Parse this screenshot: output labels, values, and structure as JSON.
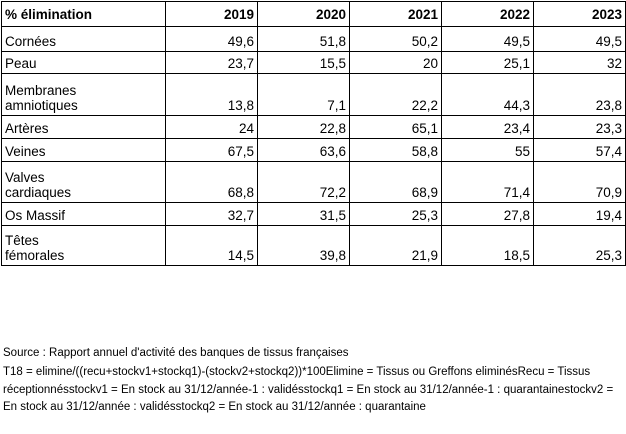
{
  "header": {
    "label": "% élimination",
    "years": [
      "2019",
      "2020",
      "2021",
      "2022",
      "2023"
    ]
  },
  "rows": [
    {
      "label": "Cornées",
      "values": [
        "49,6",
        "51,8",
        "50,2",
        "49,5",
        "49,5"
      ]
    },
    {
      "label": "Peau",
      "values": [
        "23,7",
        "15,5",
        "20",
        "25,1",
        "32"
      ]
    },
    {
      "label": "Membranes\namniotiques",
      "values": [
        "13,8",
        "7,1",
        "22,2",
        "44,3",
        "23,8"
      ]
    },
    {
      "label": "Artères",
      "values": [
        "24",
        "22,8",
        "65,1",
        "23,4",
        "23,3"
      ]
    },
    {
      "label": "Veines",
      "values": [
        "67,5",
        "63,6",
        "58,8",
        "55",
        "57,4"
      ]
    },
    {
      "label": "Valves\ncardiaques",
      "values": [
        "68,8",
        "72,2",
        "68,9",
        "71,4",
        "70,9"
      ]
    },
    {
      "label": "Os Massif",
      "values": [
        "32,7",
        "31,5",
        "25,3",
        "27,8",
        "19,4"
      ]
    },
    {
      "label": "Têtes\nfémorales",
      "values": [
        "14,5",
        "39,8",
        "21,9",
        "18,5",
        "25,3"
      ]
    }
  ],
  "footer": {
    "source": "Source : Rapport annuel d'activité des banques de tissus françaises",
    "note": "T18 = elimine/((recu+stockv1+stockq1)-(stockv2+stockq2))*100Elimine = Tissus ou Greffons eliminésRecu = Tissus réceptionnésstockv1 = En stock au 31/12/année-1 : validésstockq1 = En stock au 31/12/année-1 : quarantainestockv2 = En stock au 31/12/année : validésstockq2 = En stock au 31/12/année : quarantaine"
  }
}
